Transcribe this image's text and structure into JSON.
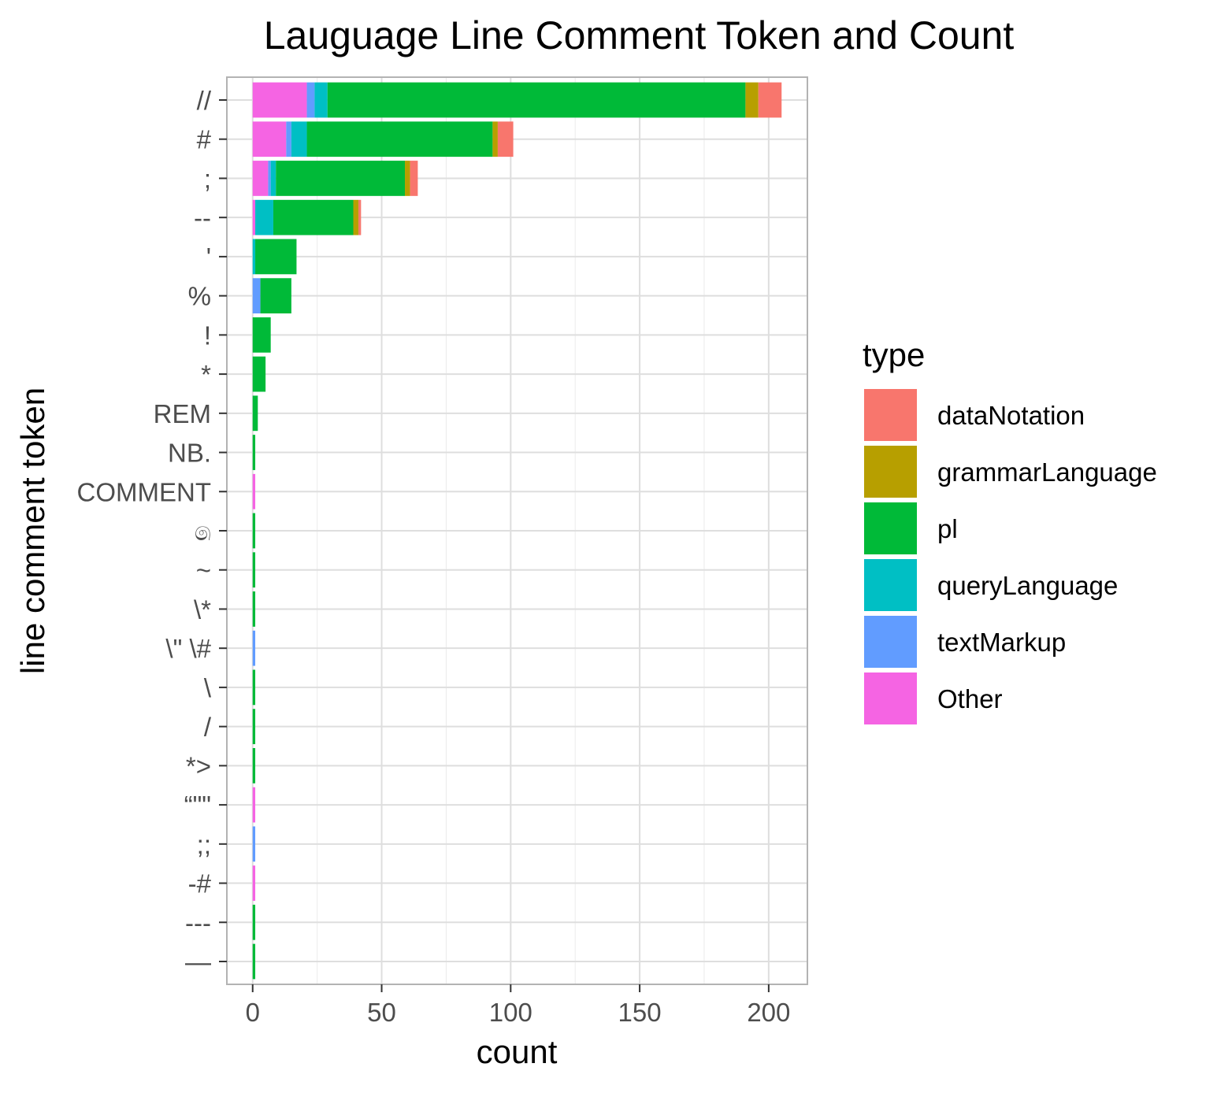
{
  "chart_data": {
    "type": "bar",
    "orientation": "horizontal",
    "stacked": true,
    "title": "Lauguage Line Comment Token and Count",
    "xlabel": "count",
    "ylabel": "line comment token",
    "xlim": [
      -10,
      215
    ],
    "xticks": [
      0,
      50,
      100,
      150,
      200
    ],
    "grid": true,
    "legend": {
      "title": "type",
      "position": "right",
      "entries": [
        "dataNotation",
        "grammarLanguage",
        "pl",
        "queryLanguage",
        "textMarkup",
        "Other"
      ]
    },
    "colors": {
      "dataNotation": "#F8766D",
      "grammarLanguage": "#B79F00",
      "pl": "#00BA38",
      "queryLanguage": "#00BFC4",
      "textMarkup": "#619CFF",
      "Other": "#F564E3"
    },
    "categories": [
      "//",
      "#",
      ";",
      "--",
      "'",
      "%",
      "!",
      "*",
      "REM",
      "NB.",
      "COMMENT",
      "෧",
      "~",
      "\\*",
      "\\\" \\#",
      "\\",
      "/",
      "*>",
      "“\"\"",
      ";;",
      "-#",
      "---",
      "—"
    ],
    "series": [
      {
        "name": "Other",
        "values": [
          21,
          13,
          6,
          1,
          0,
          0,
          0,
          0,
          0,
          0,
          1,
          0,
          0,
          0,
          0,
          0,
          0,
          0,
          1,
          0,
          1,
          0,
          0
        ]
      },
      {
        "name": "textMarkup",
        "values": [
          3,
          2,
          1,
          0,
          0,
          3,
          0,
          0,
          0,
          0,
          0,
          0,
          0,
          0,
          1,
          0,
          0,
          0,
          0,
          1,
          0,
          0,
          0
        ]
      },
      {
        "name": "queryLanguage",
        "values": [
          5,
          6,
          2,
          7,
          1,
          0,
          0,
          0,
          0,
          0,
          0,
          0,
          0,
          0,
          0,
          0,
          0,
          0,
          0,
          0,
          0,
          0,
          0
        ]
      },
      {
        "name": "pl",
        "values": [
          162,
          72,
          50,
          31,
          16,
          12,
          7,
          5,
          2,
          1,
          0,
          1,
          1,
          1,
          0,
          1,
          1,
          1,
          0,
          0,
          0,
          1,
          1
        ]
      },
      {
        "name": "grammarLanguage",
        "values": [
          5,
          2,
          2,
          2,
          0,
          0,
          0,
          0,
          0,
          0,
          0,
          0,
          0,
          0,
          0,
          0,
          0,
          0,
          0,
          0,
          0,
          0,
          0
        ]
      },
      {
        "name": "dataNotation",
        "values": [
          9,
          6,
          3,
          1,
          0,
          0,
          0,
          0,
          0,
          0,
          0,
          0,
          0,
          0,
          0,
          0,
          0,
          0,
          0,
          0,
          0,
          0,
          0
        ]
      }
    ]
  }
}
